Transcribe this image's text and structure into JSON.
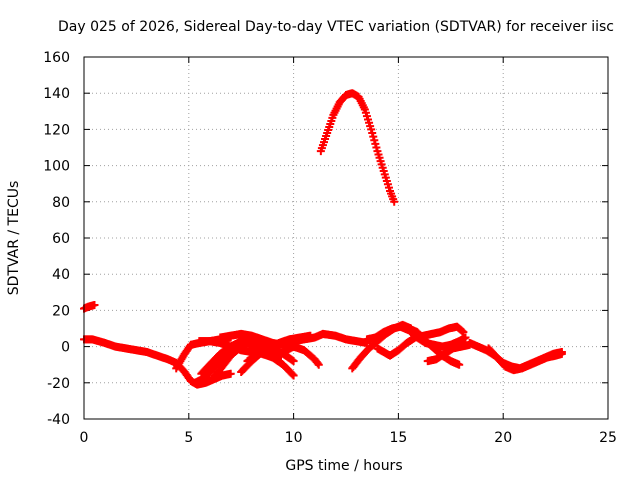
{
  "chart_data": {
    "type": "scatter",
    "title": "Day 025 of 2026, Sidereal Day-to-day VTEC variation (SDTVAR) for receiver iisc",
    "xlabel": "GPS time / hours",
    "ylabel": "SDTVAR / TECUs",
    "xlim": [
      0,
      25
    ],
    "ylim": [
      -40,
      160
    ],
    "xticks": [
      0,
      5,
      10,
      15,
      20,
      25
    ],
    "yticks": [
      -40,
      -20,
      0,
      20,
      40,
      60,
      80,
      100,
      120,
      140,
      160
    ],
    "grid": true,
    "marker": "plus",
    "color": "#ff0000",
    "series": [
      {
        "name": "s1",
        "x": [
          0.0,
          0.2,
          0.5
        ],
        "y": [
          21,
          22,
          23
        ]
      },
      {
        "name": "s2",
        "x": [
          0.0,
          0.4,
          1.0,
          1.5,
          2.0,
          2.5,
          3.0,
          3.5,
          4.0,
          4.4,
          4.8,
          5.1,
          5.4,
          5.8,
          6.2,
          6.6,
          7.0
        ],
        "y": [
          4,
          4,
          2,
          0,
          -1,
          -2,
          -3,
          -5,
          -7,
          -9,
          -14,
          -19,
          -21,
          -20,
          -18,
          -16,
          -15
        ]
      },
      {
        "name": "s3",
        "x": [
          4.4,
          4.8,
          5.1,
          5.5,
          6.0,
          6.5,
          7.0
        ],
        "y": [
          -12,
          -4,
          1,
          2,
          3,
          4,
          5
        ]
      },
      {
        "name": "s4",
        "x": [
          5.3,
          5.8,
          6.3,
          6.8,
          7.3,
          7.8,
          8.2,
          8.6,
          9.0,
          9.4
        ],
        "y": [
          -20,
          -17,
          -10,
          -4,
          0,
          2,
          1,
          -1,
          -3,
          -5
        ]
      },
      {
        "name": "s5",
        "x": [
          5.5,
          6.0,
          6.5,
          7.0,
          7.5,
          8.0
        ],
        "y": [
          3,
          3,
          2,
          0,
          -2,
          -3
        ]
      },
      {
        "name": "s6",
        "x": [
          5.6,
          6.0,
          6.5,
          7.0,
          7.5,
          8.0,
          8.5,
          9.0,
          9.5,
          10.0
        ],
        "y": [
          -15,
          -10,
          -4,
          0,
          3,
          4,
          2,
          -1,
          -4,
          -8
        ]
      },
      {
        "name": "s7",
        "x": [
          6.2,
          6.6,
          7.0,
          7.4,
          7.8,
          8.2,
          8.6,
          9.0,
          9.5,
          10.0
        ],
        "y": [
          -17,
          -11,
          -5,
          -1,
          2,
          0,
          -3,
          -6,
          -10,
          -16
        ]
      },
      {
        "name": "s8",
        "x": [
          6.5,
          7.0,
          7.5,
          8.0,
          8.5,
          9.0,
          9.5,
          10.0,
          10.5,
          11.0,
          11.2
        ],
        "y": [
          5,
          6,
          7,
          6,
          4,
          2,
          1,
          0,
          -2,
          -7,
          -10
        ]
      },
      {
        "name": "s9",
        "x": [
          7.5,
          8.0,
          8.5,
          9.0,
          9.5,
          10.0,
          10.5,
          11.0,
          11.4,
          12.0,
          12.5,
          13.0,
          13.5
        ],
        "y": [
          -14,
          -8,
          -3,
          0,
          2,
          3,
          4,
          5,
          7,
          6,
          4,
          3,
          2
        ]
      },
      {
        "name": "s10",
        "x": [
          7.8,
          8.3,
          8.8,
          9.3,
          9.8,
          10.3,
          10.8
        ],
        "y": [
          -8,
          -4,
          -1,
          2,
          4,
          5,
          6
        ]
      },
      {
        "name": "s11",
        "x": [
          8.0,
          8.5,
          9.0,
          9.5,
          10.0
        ],
        "y": [
          -2,
          -4,
          -6,
          -3,
          0
        ]
      },
      {
        "name": "s12",
        "x": [
          11.3,
          11.6,
          11.9,
          12.2,
          12.5,
          12.8,
          13.1,
          13.4,
          13.7,
          14.0,
          14.3,
          14.6,
          14.8
        ],
        "y": [
          108,
          118,
          128,
          135,
          139,
          140,
          138,
          131,
          120,
          108,
          97,
          86,
          80
        ]
      },
      {
        "name": "s13",
        "x": [
          12.8,
          13.2,
          13.6,
          14.0,
          14.4,
          14.8,
          15.2,
          15.6
        ],
        "y": [
          -12,
          -6,
          -1,
          3,
          7,
          10,
          12,
          10
        ]
      },
      {
        "name": "s14",
        "x": [
          13.5,
          13.9,
          14.3,
          14.7,
          15.1,
          15.5,
          15.9,
          16.3,
          16.7,
          17.1,
          17.5,
          17.9,
          18.2
        ],
        "y": [
          4,
          5,
          8,
          10,
          11,
          9,
          5,
          2,
          1,
          0,
          1,
          3,
          5
        ]
      },
      {
        "name": "s15",
        "x": [
          14.0,
          14.3,
          14.6,
          15.0,
          15.4,
          15.8,
          16.2,
          16.6,
          17.0,
          17.4,
          17.8,
          18.1
        ],
        "y": [
          -1,
          -3,
          -5,
          -2,
          2,
          5,
          6,
          7,
          8,
          10,
          11,
          8
        ]
      },
      {
        "name": "s16",
        "x": [
          15.5,
          15.9,
          16.3,
          16.7,
          17.1,
          17.5,
          17.9
        ],
        "y": [
          10,
          8,
          3,
          -1,
          -5,
          -8,
          -10
        ]
      },
      {
        "name": "s17",
        "x": [
          16.4,
          16.8,
          17.2,
          17.6,
          18.0,
          18.4
        ],
        "y": [
          -8,
          -7,
          -4,
          -1,
          0,
          1
        ]
      },
      {
        "name": "s18",
        "x": [
          18.4,
          18.8,
          19.2,
          19.6,
          20.0,
          20.4,
          20.8,
          21.2,
          21.6,
          22.0,
          22.4,
          22.8
        ],
        "y": [
          2,
          0,
          -2,
          -5,
          -9,
          -11,
          -12,
          -10,
          -8,
          -6,
          -4,
          -3
        ]
      },
      {
        "name": "s19",
        "x": [
          19.3,
          19.7,
          20.1,
          20.5,
          20.9,
          21.3,
          21.7,
          22.1,
          22.5,
          22.8
        ],
        "y": [
          -1,
          -6,
          -11,
          -13,
          -12,
          -10,
          -8,
          -6,
          -5,
          -4
        ]
      }
    ]
  }
}
